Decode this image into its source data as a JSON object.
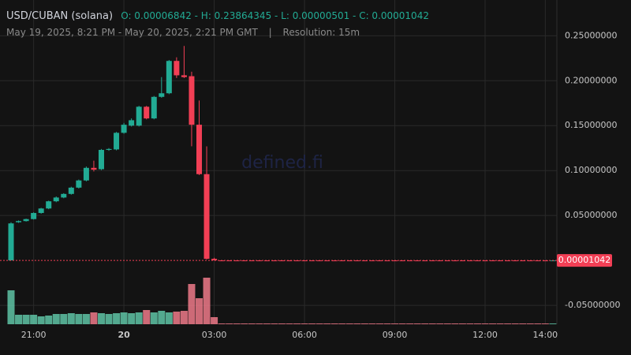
{
  "chart_data": {
    "type": "candlestick",
    "title": "USD/CUBAN (solana)",
    "ohlc_text": "O: 0.00006842 - H: 0.23864345 - L: 0.00000501 - C: 0.00001042",
    "subtitle": "May 19, 2025, 8:21 PM - May 20, 2025, 2:21 PM GMT",
    "separator": "|",
    "resolution": "Resolution: 15m",
    "watermark": "defined.fi",
    "up_color": "#22ab94",
    "down_color": "#f23f55",
    "categories": [
      null,
      null,
      null,
      "21:00",
      null,
      null,
      null,
      null,
      null,
      null,
      null,
      null,
      null,
      null,
      null,
      "20",
      null,
      null,
      null,
      null,
      null,
      null,
      null,
      null,
      null,
      null,
      null,
      "03:00",
      null,
      null,
      null,
      null,
      null,
      null,
      null,
      null,
      null,
      null,
      null,
      "06:00",
      null,
      null,
      null,
      null,
      null,
      null,
      null,
      null,
      null,
      null,
      null,
      "09:00",
      null,
      null,
      null,
      null,
      null,
      null,
      null,
      null,
      null,
      null,
      null,
      "12:00",
      null,
      null,
      null,
      null,
      null,
      null,
      null,
      "14:00",
      null
    ],
    "open": [
      6.842e-05,
      0.0425,
      0.0438,
      0.046,
      0.0528,
      0.0578,
      0.0658,
      0.07,
      0.074,
      0.081,
      0.089,
      0.103,
      0.1015,
      0.123,
      0.1235,
      0.142,
      0.15,
      0.15,
      0.171,
      0.158,
      0.182,
      0.186,
      0.222,
      0.206,
      0.205,
      0.151,
      0.096,
      0.0018,
      1.05e-05,
      1.05e-05,
      1.05e-05,
      1.05e-05,
      1.05e-05,
      1.05e-05,
      1.05e-05,
      1.05e-05,
      1.05e-05,
      1.05e-05,
      1.05e-05,
      1.05e-05,
      1.05e-05,
      1.05e-05,
      1.05e-05,
      1.05e-05,
      1.05e-05,
      1.05e-05,
      1.05e-05,
      1.05e-05,
      1.05e-05,
      1.05e-05,
      1.05e-05,
      1.05e-05,
      1.05e-05,
      1.05e-05,
      1.05e-05,
      1.05e-05,
      1.05e-05,
      1.05e-05,
      1.05e-05,
      1.05e-05,
      1.05e-05,
      1.05e-05,
      1.05e-05,
      1.05e-05,
      1.05e-05,
      1.05e-05,
      1.05e-05,
      1.05e-05,
      1.05e-05,
      1.05e-05,
      1.05e-05,
      1.05e-05,
      1.04e-05
    ],
    "high": [
      0.0425,
      0.0445,
      0.0465,
      0.0535,
      0.0585,
      0.0665,
      0.0712,
      0.0748,
      0.082,
      0.09,
      0.1045,
      0.111,
      0.124,
      0.125,
      0.143,
      0.153,
      0.158,
      0.172,
      0.172,
      0.183,
      0.204,
      0.223,
      0.226,
      0.23864345,
      0.21,
      0.178,
      0.127,
      0.003,
      1.2e-05,
      1.2e-05,
      1.2e-05,
      1.2e-05,
      1.2e-05,
      1.2e-05,
      1.2e-05,
      1.2e-05,
      1.2e-05,
      1.2e-05,
      1.2e-05,
      1.2e-05,
      1.2e-05,
      1.2e-05,
      1.2e-05,
      1.2e-05,
      1.2e-05,
      1.2e-05,
      1.2e-05,
      1.2e-05,
      1.2e-05,
      1.2e-05,
      1.2e-05,
      1.2e-05,
      1.2e-05,
      1.2e-05,
      1.2e-05,
      1.2e-05,
      1.2e-05,
      1.2e-05,
      1.2e-05,
      1.2e-05,
      1.2e-05,
      1.2e-05,
      1.2e-05,
      1.2e-05,
      1.2e-05,
      1.2e-05,
      1.2e-05,
      1.2e-05,
      1.2e-05,
      1.2e-05,
      1.2e-05,
      1.2e-05,
      1.12e-05
    ],
    "low": [
      5.01e-06,
      0.0418,
      0.0432,
      0.0455,
      0.052,
      0.057,
      0.0648,
      0.0692,
      0.0732,
      0.08,
      0.088,
      0.099,
      0.1005,
      0.122,
      0.1225,
      0.141,
      0.149,
      0.149,
      0.157,
      0.157,
      0.181,
      0.185,
      0.203,
      0.203,
      0.127,
      0.095,
      0.001,
      0.0002,
      9.8e-06,
      9.8e-06,
      9.8e-06,
      9.8e-06,
      9.8e-06,
      9.8e-06,
      9.8e-06,
      9.8e-06,
      9.8e-06,
      9.8e-06,
      9.8e-06,
      9.8e-06,
      9.8e-06,
      9.8e-06,
      9.8e-06,
      9.8e-06,
      9.8e-06,
      9.8e-06,
      9.8e-06,
      9.8e-06,
      9.8e-06,
      9.8e-06,
      9.8e-06,
      9.8e-06,
      9.8e-06,
      9.8e-06,
      9.8e-06,
      9.8e-06,
      9.8e-06,
      9.8e-06,
      9.8e-06,
      9.8e-06,
      9.8e-06,
      9.8e-06,
      9.8e-06,
      9.8e-06,
      9.8e-06,
      9.8e-06,
      9.8e-06,
      9.8e-06,
      9.8e-06,
      9.8e-06,
      9.8e-06,
      9.8e-06,
      1e-05
    ],
    "close": [
      0.0412,
      0.0438,
      0.046,
      0.0528,
      0.0578,
      0.0658,
      0.07,
      0.074,
      0.081,
      0.089,
      0.103,
      0.101,
      0.123,
      0.124,
      0.142,
      0.151,
      0.156,
      0.171,
      0.158,
      0.182,
      0.186,
      0.222,
      0.206,
      0.204,
      0.151,
      0.096,
      0.0018,
      0.0002,
      1.04e-05,
      1.04e-05,
      1.04e-05,
      1.04e-05,
      1.04e-05,
      1.04e-05,
      1.04e-05,
      1.04e-05,
      1.04e-05,
      1.04e-05,
      1.04e-05,
      1.04e-05,
      1.04e-05,
      1.04e-05,
      1.04e-05,
      1.04e-05,
      1.04e-05,
      1.04e-05,
      1.04e-05,
      1.04e-05,
      1.04e-05,
      1.04e-05,
      1.04e-05,
      1.04e-05,
      1.04e-05,
      1.04e-05,
      1.04e-05,
      1.04e-05,
      1.04e-05,
      1.04e-05,
      1.04e-05,
      1.04e-05,
      1.04e-05,
      1.04e-05,
      1.04e-05,
      1.04e-05,
      1.04e-05,
      1.04e-05,
      1.04e-05,
      1.04e-05,
      1.04e-05,
      1.04e-05,
      1.04e-05,
      1.04e-05,
      1.042e-05
    ],
    "volume": [
      43,
      12,
      12,
      12,
      10,
      11,
      13,
      13,
      14,
      13,
      13,
      15,
      14,
      13,
      14,
      15,
      14,
      15,
      18,
      15,
      17,
      15,
      16,
      17,
      51,
      33,
      59,
      9,
      1,
      1,
      1,
      1,
      1,
      1,
      1,
      1,
      1,
      1,
      1,
      1,
      1,
      1,
      1,
      1,
      1,
      1,
      1,
      1,
      1,
      1,
      1,
      1,
      1,
      1,
      1,
      1,
      1,
      1,
      1,
      1,
      1,
      1,
      1,
      1,
      1,
      1,
      1,
      1,
      1,
      1,
      1,
      1,
      1
    ],
    "ylim": [
      -0.071,
      0.281
    ],
    "yticks": [
      {
        "value": 0.25,
        "label": "0.25000000"
      },
      {
        "value": 0.2,
        "label": "0.20000000"
      },
      {
        "value": 0.15,
        "label": "0.15000000"
      },
      {
        "value": 0.1,
        "label": "0.10000000"
      },
      {
        "value": 0.05,
        "label": "0.05000000"
      },
      {
        "value": -0.05,
        "label": "-0.05000000"
      }
    ],
    "last_price": {
      "value": 1.042e-05,
      "label": "0.00001042"
    },
    "grid": true
  }
}
